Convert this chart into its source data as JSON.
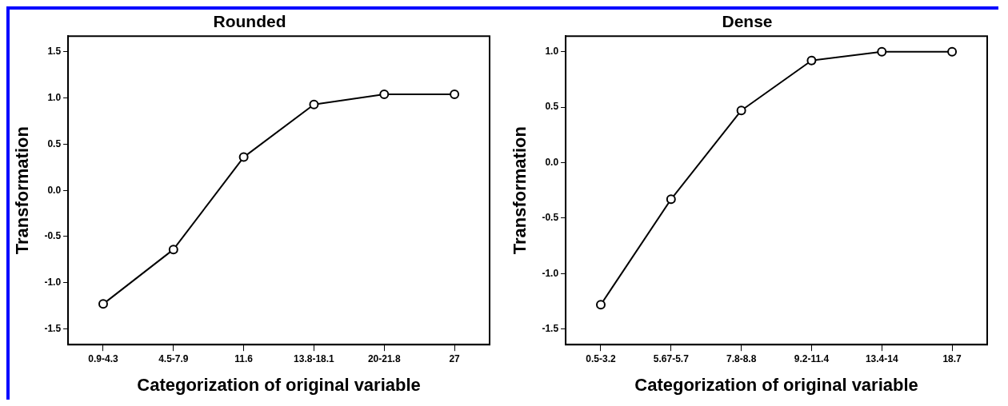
{
  "chart_data": [
    {
      "type": "line",
      "title": "Rounded",
      "xlabel": "Categorization of original variable",
      "ylabel": "Transformation",
      "categories": [
        "0.9-4.3",
        "4.5-7.9",
        "11.6",
        "13.8-18.1",
        "20-21.8",
        "27"
      ],
      "series": [
        {
          "color": "#000000",
          "values": [
            -1.23,
            -0.64,
            0.36,
            0.93,
            1.04,
            1.04
          ]
        }
      ],
      "ylim": [
        -1.67,
        1.67
      ],
      "yticks": [
        {
          "value": -1.5,
          "label": "-1.5"
        },
        {
          "value": -1,
          "label": "-1.0"
        },
        {
          "value": -0.5,
          "label": "-0.5"
        },
        {
          "value": 0,
          "label": "0.0"
        },
        {
          "value": 0.5,
          "label": "0.5"
        },
        {
          "value": 1,
          "label": "1.0"
        },
        {
          "value": 1.5,
          "label": "1.5"
        }
      ],
      "grid": false,
      "legend": false,
      "marker": "circle",
      "line_style": "solid"
    },
    {
      "type": "line",
      "title": "Dense",
      "xlabel": "Categorization of original variable",
      "ylabel": "Transformation",
      "categories": [
        "0.5-3.2",
        "5.67-5.7",
        "7.8-8.8",
        "9.2-11.4",
        "13.4-14",
        "18.7"
      ],
      "series": [
        {
          "color": "#000000",
          "values": [
            -1.28,
            -0.33,
            0.47,
            0.92,
            1.0,
            1.0
          ]
        }
      ],
      "ylim": [
        -1.64,
        1.14
      ],
      "yticks": [
        {
          "value": -1.5,
          "label": "-1.5"
        },
        {
          "value": -1,
          "label": "-1.0"
        },
        {
          "value": -0.5,
          "label": "-0.5"
        },
        {
          "value": 0,
          "label": "0.0"
        },
        {
          "value": 0.5,
          "label": "0.5"
        },
        {
          "value": 1,
          "label": "1.0"
        }
      ],
      "grid": false,
      "legend": false,
      "marker": "circle",
      "line_style": "solid"
    }
  ]
}
